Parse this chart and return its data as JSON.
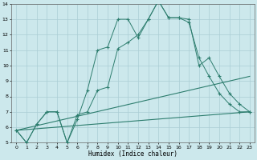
{
  "xlabel": "Humidex (Indice chaleur)",
  "bg_color": "#cce8ec",
  "grid_color": "#aacdd4",
  "line_color": "#2d7d6e",
  "xlim": [
    -0.5,
    23.5
  ],
  "ylim": [
    5,
    14
  ],
  "xticks": [
    0,
    1,
    2,
    3,
    4,
    5,
    6,
    7,
    8,
    9,
    10,
    11,
    12,
    13,
    14,
    15,
    16,
    17,
    18,
    19,
    20,
    21,
    22,
    23
  ],
  "yticks": [
    5,
    6,
    7,
    8,
    9,
    10,
    11,
    12,
    13,
    14
  ],
  "line1_x": [
    0,
    1,
    2,
    3,
    4,
    5,
    6,
    7,
    8,
    9,
    10,
    11,
    12,
    13,
    14,
    15,
    16,
    17,
    18,
    19,
    20,
    21,
    22,
    23
  ],
  "line1_y": [
    5.8,
    5.0,
    6.2,
    7.0,
    7.0,
    5.0,
    6.5,
    8.4,
    11.0,
    11.2,
    13.0,
    13.0,
    11.8,
    13.0,
    14.2,
    13.1,
    13.1,
    13.0,
    10.0,
    10.5,
    9.3,
    8.2,
    7.5,
    7.0
  ],
  "line2_x": [
    0,
    1,
    2,
    3,
    4,
    5,
    6,
    7,
    8,
    9,
    10,
    11,
    12,
    13,
    14,
    15,
    16,
    17,
    18,
    19,
    20,
    21,
    22,
    23
  ],
  "line2_y": [
    5.8,
    5.0,
    6.2,
    7.0,
    7.0,
    5.0,
    6.8,
    7.0,
    8.4,
    8.6,
    11.1,
    11.5,
    12.0,
    13.0,
    14.2,
    13.1,
    13.1,
    12.8,
    10.5,
    9.3,
    8.2,
    7.5,
    7.0,
    7.0
  ],
  "line3_x": [
    0,
    23
  ],
  "line3_y": [
    5.8,
    7.0
  ],
  "line4_x": [
    0,
    23
  ],
  "line4_y": [
    5.8,
    9.3
  ]
}
